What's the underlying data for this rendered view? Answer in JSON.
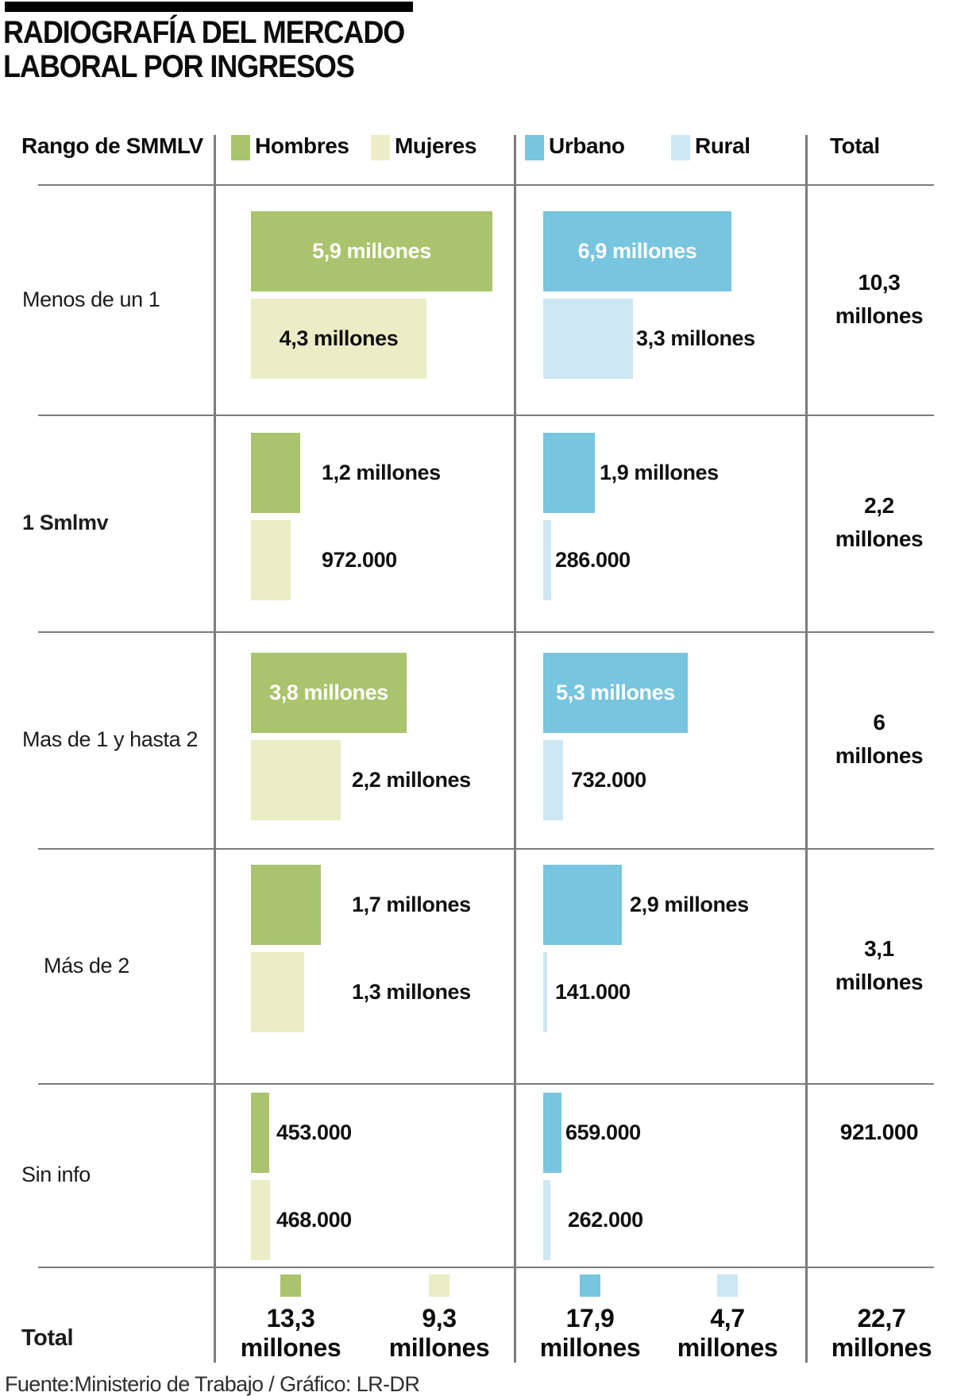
{
  "title": {
    "line1": "RADIOGRAFÍA DEL MERCADO",
    "line2": "LABORAL POR INGRESOS"
  },
  "header": {
    "row_label": "Rango de SMMLV",
    "total_label": "Total",
    "legend": [
      {
        "id": "hombres",
        "label": "Hombres",
        "color": "#a9c46c"
      },
      {
        "id": "mujeres",
        "label": "Mujeres",
        "color": "#eaedc6"
      },
      {
        "id": "urbano",
        "label": "Urbano",
        "color": "#77c5df"
      },
      {
        "id": "rural",
        "label": "Rural",
        "color": "#cde7f3"
      }
    ]
  },
  "chart_data": {
    "type": "bar",
    "orientation": "horizontal",
    "unit": "millions of people",
    "title": "Radiografía del mercado laboral por ingresos",
    "categories": [
      "Menos de un 1",
      "1 Smlmv",
      "Mas de 1 y hasta 2",
      "Más de 2",
      "Sin info"
    ],
    "series": [
      {
        "name": "Hombres",
        "values": [
          5.9,
          1.2,
          3.8,
          1.7,
          0.453
        ],
        "value_labels": [
          "5,9 millones",
          "1,2 millones",
          "3,8 millones",
          "1,7 millones",
          "453.000"
        ],
        "total_value": 13.3,
        "total_lines": [
          "13,3",
          "millones"
        ]
      },
      {
        "name": "Mujeres",
        "values": [
          4.3,
          0.972,
          2.2,
          1.3,
          0.468
        ],
        "value_labels": [
          "4,3 millones",
          "972.000",
          "2,2 millones",
          "1,3 millones",
          "468.000"
        ],
        "total_value": 9.3,
        "total_lines": [
          "9,3",
          "millones"
        ]
      },
      {
        "name": "Urbano",
        "values": [
          6.9,
          1.9,
          5.3,
          2.9,
          0.659
        ],
        "value_labels": [
          "6,9 millones",
          "1,9 millones",
          "5,3 millones",
          "2,9 millones",
          "659.000"
        ],
        "total_value": 17.9,
        "total_lines": [
          "17,9",
          "millones"
        ]
      },
      {
        "name": "Rural",
        "values": [
          3.3,
          0.286,
          0.732,
          0.141,
          0.262
        ],
        "value_labels": [
          "3,3 millones",
          "286.000",
          "732.000",
          "141.000",
          "262.000"
        ],
        "total_value": 4.7,
        "total_lines": [
          "4,7",
          "millones"
        ]
      }
    ],
    "row_totals": {
      "values": [
        10.3,
        2.2,
        6.0,
        3.1,
        0.921
      ],
      "label_lines": [
        [
          "10,3",
          "millones"
        ],
        [
          "2,2",
          "millones"
        ],
        [
          "6",
          "millones"
        ],
        [
          "3,1",
          "millones"
        ],
        [
          "921.000"
        ]
      ]
    },
    "grand_total": {
      "value": 22.7,
      "lines": [
        "22,7",
        "millones"
      ]
    },
    "total_row_label": "Total",
    "legend_position": "top",
    "grid": false
  },
  "footer": {
    "source": "Fuente:Ministerio de Trabajo / Gráfico: LR-DR"
  }
}
